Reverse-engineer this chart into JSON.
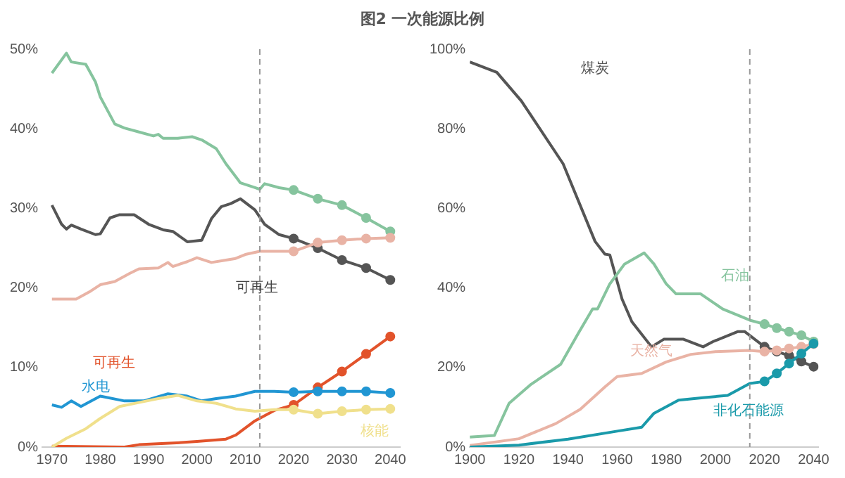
{
  "chart_data": [
    {
      "type": "line",
      "title": "图2 一次能源比例",
      "xlim": [
        1968,
        2042
      ],
      "xticks": [
        1970,
        1980,
        1990,
        2000,
        2010,
        2020,
        2030,
        2040
      ],
      "ylim": [
        0,
        50
      ],
      "yticks": [
        {
          "value": 0,
          "label": "0%"
        },
        {
          "value": 10,
          "label": "10%"
        },
        {
          "value": 20,
          "label": "20%"
        },
        {
          "value": 30,
          "label": "30%"
        },
        {
          "value": 40,
          "label": "40%"
        },
        {
          "value": 50,
          "label": "50%"
        }
      ],
      "grid": false,
      "legend": false,
      "line_style": "solid",
      "ref_lines": [
        {
          "axis": "x",
          "value": 2013,
          "color": "#999999",
          "line_style": "dashed"
        }
      ],
      "annotations": [
        "可再生"
      ],
      "series": [
        {
          "color": "#86c49e",
          "marker": "none",
          "x": [
            1970,
            1973,
            1974,
            1977,
            1979,
            1980,
            1983,
            1985,
            1988,
            1991,
            1992,
            1993,
            1996,
            1999,
            2001,
            2004,
            2006,
            2009,
            2012,
            2013,
            2014,
            2017,
            2020
          ],
          "values": [
            47.0,
            49.5,
            48.4,
            48.1,
            45.9,
            44.0,
            40.6,
            40.1,
            39.6,
            39.1,
            39.3,
            38.8,
            38.8,
            39.0,
            38.6,
            37.5,
            35.6,
            33.2,
            32.6,
            32.4,
            33.1,
            32.6,
            32.3
          ]
        },
        {
          "color": "#555555",
          "marker": "none",
          "x": [
            1970,
            1972,
            1973,
            1974,
            1976,
            1979,
            1980,
            1982,
            1984,
            1987,
            1990,
            1993,
            1995,
            1998,
            2001,
            2003,
            2005,
            2007,
            2009,
            2012,
            2014,
            2017,
            2020
          ],
          "values": [
            30.4,
            28.0,
            27.4,
            27.9,
            27.4,
            26.7,
            26.8,
            28.8,
            29.2,
            29.2,
            28.0,
            27.3,
            27.1,
            25.8,
            26.0,
            28.7,
            30.2,
            30.6,
            31.2,
            29.8,
            28.0,
            26.7,
            26.2
          ]
        },
        {
          "color": "#e9b3a5",
          "marker": "none",
          "x": [
            1970,
            1975,
            1978,
            1980,
            1983,
            1986,
            1988,
            1992,
            1994,
            1995,
            1998,
            2000,
            2003,
            2006,
            2008,
            2010,
            2013,
            2020
          ],
          "values": [
            18.6,
            18.6,
            19.6,
            20.4,
            20.8,
            21.8,
            22.4,
            22.5,
            23.2,
            22.7,
            23.3,
            23.8,
            23.2,
            23.5,
            23.7,
            24.2,
            24.6,
            24.6
          ]
        },
        {
          "name": "可再生",
          "color": "#e2532b",
          "marker": "none",
          "x": [
            1970,
            1985,
            1988,
            1995,
            2000,
            2006,
            2008,
            2012,
            2016,
            2020
          ],
          "values": [
            0.1,
            0,
            0.3,
            0.5,
            0.7,
            1.0,
            1.5,
            3.3,
            4.6,
            5.3
          ]
        },
        {
          "name": "水电",
          "color": "#2196d3",
          "marker": "none",
          "x": [
            1970,
            1972,
            1974,
            1976,
            1980,
            1985,
            1989,
            1994,
            1998,
            2001,
            2004,
            2008,
            2012,
            2016,
            2020
          ],
          "values": [
            5.3,
            5.0,
            5.8,
            5.1,
            6.4,
            5.8,
            5.8,
            6.7,
            6.4,
            5.8,
            6.1,
            6.4,
            7.0,
            7.0,
            6.9
          ]
        },
        {
          "name": "核能",
          "color": "#f0e08c",
          "marker": "none",
          "x": [
            1970,
            1973,
            1977,
            1980,
            1984,
            1988,
            1992,
            1996,
            2000,
            2004,
            2008,
            2012,
            2016,
            2020
          ],
          "values": [
            0,
            1.1,
            2.3,
            3.6,
            5.1,
            5.6,
            6.1,
            6.5,
            5.8,
            5.5,
            4.8,
            4.5,
            4.7,
            4.7
          ]
        },
        {
          "color": "#86c49e",
          "marker": "circle",
          "x": [
            2020,
            2025,
            2030,
            2035,
            2040
          ],
          "values": [
            32.3,
            31.2,
            30.4,
            28.8,
            27.1
          ]
        },
        {
          "color": "#555555",
          "marker": "circle",
          "x": [
            2020,
            2025,
            2030,
            2035,
            2040
          ],
          "values": [
            26.2,
            25.0,
            23.5,
            22.5,
            21.0
          ]
        },
        {
          "color": "#e9b3a5",
          "marker": "circle",
          "x": [
            2020,
            2025,
            2030,
            2035,
            2040
          ],
          "values": [
            24.6,
            25.7,
            26.0,
            26.2,
            26.3
          ]
        },
        {
          "color": "#e2532b",
          "marker": "circle",
          "x": [
            2020,
            2025,
            2030,
            2035,
            2040
          ],
          "values": [
            5.3,
            7.5,
            9.5,
            11.7,
            13.9
          ]
        },
        {
          "color": "#2196d3",
          "marker": "circle",
          "x": [
            2020,
            2025,
            2030,
            2035,
            2040
          ],
          "values": [
            6.9,
            7.0,
            7.0,
            7.0,
            6.8
          ]
        },
        {
          "color": "#f0e08c",
          "marker": "circle",
          "x": [
            2020,
            2025,
            2030,
            2035,
            2040
          ],
          "values": [
            4.7,
            4.2,
            4.5,
            4.7,
            4.8
          ]
        }
      ]
    },
    {
      "type": "line",
      "xlim": [
        1900,
        2042
      ],
      "xticks": [
        1900,
        1920,
        1940,
        1960,
        1980,
        2000,
        2020,
        2040
      ],
      "ylim": [
        0,
        100
      ],
      "yticks": [
        {
          "value": 0,
          "label": "0%"
        },
        {
          "value": 20,
          "label": "20%"
        },
        {
          "value": 40,
          "label": "40%"
        },
        {
          "value": 60,
          "label": "60%"
        },
        {
          "value": 80,
          "label": "80%"
        },
        {
          "value": 100,
          "label": "100%"
        }
      ],
      "grid": false,
      "legend": false,
      "line_style": "solid",
      "ref_lines": [
        {
          "axis": "x",
          "value": 2014,
          "color": "#999999",
          "line_style": "dashed"
        }
      ],
      "series": [
        {
          "name": "煤炭",
          "color": "#555555",
          "marker": "none",
          "x": [
            1900,
            1911,
            1921,
            1938,
            1951,
            1955,
            1957,
            1962,
            1966,
            1974,
            1979,
            1987,
            1995,
            1999,
            2009,
            2012,
            2020
          ],
          "values": [
            96.8,
            94.2,
            87,
            71.2,
            51.7,
            48.5,
            48.3,
            37.2,
            31.5,
            25.2,
            27.1,
            27.1,
            25.2,
            26.5,
            29,
            29,
            25.2
          ]
        },
        {
          "name": "石油",
          "color": "#86c49e",
          "marker": "none",
          "x": [
            1900,
            1910,
            1916,
            1925,
            1937,
            1944,
            1950,
            1952,
            1957,
            1963,
            1971,
            1975,
            1980,
            1984,
            1994,
            2003,
            2014,
            2020
          ],
          "values": [
            2.5,
            2.9,
            11,
            15.8,
            20.8,
            28.4,
            34.7,
            34.7,
            41,
            46,
            48.8,
            46,
            41,
            38.5,
            38.5,
            34.7,
            31.9,
            30.9
          ]
        },
        {
          "name": "天然气",
          "color": "#e9b3a5",
          "marker": "none",
          "x": [
            1900,
            1920,
            1935,
            1945,
            1955,
            1960,
            1970,
            1980,
            1990,
            2000,
            2014,
            2020
          ],
          "values": [
            0.4,
            2.1,
            5.9,
            9.5,
            15.1,
            17.7,
            18.5,
            21.4,
            23.3,
            24,
            24.3,
            24
          ]
        },
        {
          "name": "非化石能源",
          "color": "#1a9aaa",
          "marker": "none",
          "x": [
            1900,
            1920,
            1940,
            1960,
            1970,
            1975,
            1985,
            1995,
            2005,
            2014,
            2020
          ],
          "values": [
            0,
            0.5,
            2,
            4,
            5,
            8.5,
            11.8,
            12.4,
            13,
            16,
            16.5
          ]
        },
        {
          "color": "#555555",
          "marker": "circle",
          "x": [
            2020,
            2025,
            2030,
            2035,
            2040
          ],
          "values": [
            25.2,
            24,
            23,
            21.5,
            20.2
          ]
        },
        {
          "color": "#86c49e",
          "marker": "circle",
          "x": [
            2020,
            2025,
            2030,
            2035,
            2040
          ],
          "values": [
            30.9,
            29.9,
            29,
            28.1,
            26.5
          ]
        },
        {
          "color": "#e9b3a5",
          "marker": "circle",
          "x": [
            2020,
            2025,
            2030,
            2035,
            2040
          ],
          "values": [
            24,
            24.3,
            24.8,
            25.2,
            25.9
          ]
        },
        {
          "color": "#1a9aaa",
          "marker": "circle",
          "x": [
            2020,
            2025,
            2030,
            2035,
            2040
          ],
          "values": [
            16.5,
            18.5,
            21,
            23.5,
            26
          ]
        }
      ]
    }
  ]
}
